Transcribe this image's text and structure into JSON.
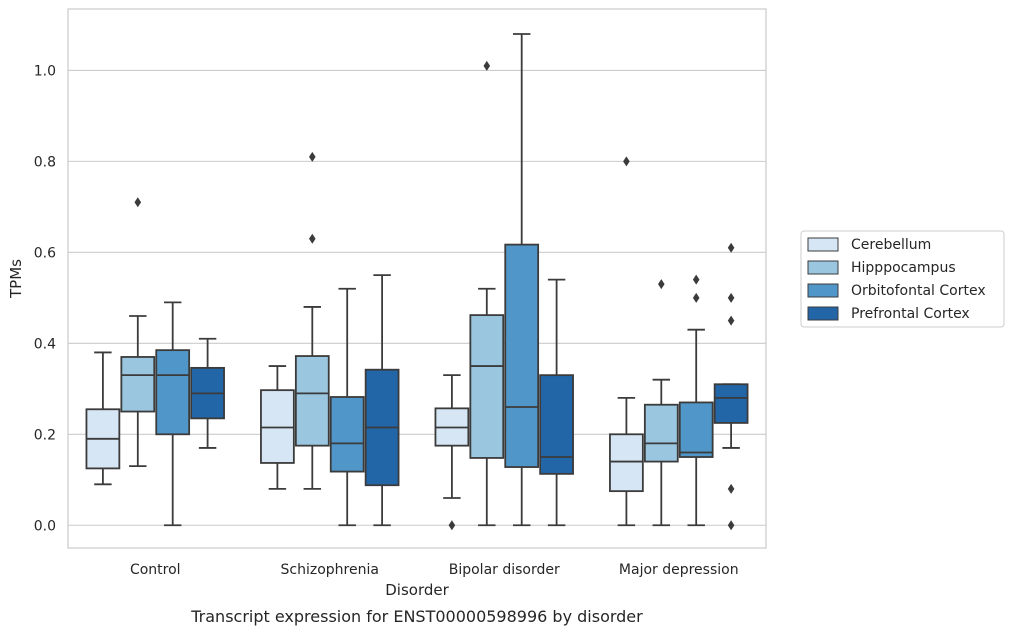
{
  "caption": "Transcript expression for ENST00000598996 by disorder",
  "chart_data": {
    "type": "box",
    "title": "",
    "xlabel": "Disorder",
    "ylabel": "TPMs",
    "categories": [
      "Control",
      "Schizophrenia",
      "Bipolar disorder",
      "Major depression"
    ],
    "ylim": [
      -0.05,
      1.135
    ],
    "yticks": [
      0.0,
      0.2,
      0.4,
      0.6,
      0.8,
      1.0
    ],
    "ytick_labels": [
      "0.0",
      "0.2",
      "0.4",
      "0.6",
      "0.8",
      "1.0"
    ],
    "grid": "horizontal",
    "legend_position": "right",
    "series": [
      {
        "name": "Cerebellum",
        "color": "#d6e6f4",
        "boxes": [
          {
            "whisker_low": 0.09,
            "q1": 0.125,
            "median": 0.19,
            "q3": 0.255,
            "whisker_high": 0.38,
            "outliers": []
          },
          {
            "whisker_low": 0.08,
            "q1": 0.137,
            "median": 0.215,
            "q3": 0.297,
            "whisker_high": 0.35,
            "outliers": []
          },
          {
            "whisker_low": 0.06,
            "q1": 0.175,
            "median": 0.215,
            "q3": 0.257,
            "whisker_high": 0.33,
            "outliers": [
              0.0
            ]
          },
          {
            "whisker_low": 0.0,
            "q1": 0.075,
            "median": 0.14,
            "q3": 0.2,
            "whisker_high": 0.28,
            "outliers": [
              0.8
            ]
          }
        ]
      },
      {
        "name": "Hipppocampus",
        "color": "#9ac6e0",
        "boxes": [
          {
            "whisker_low": 0.13,
            "q1": 0.25,
            "median": 0.33,
            "q3": 0.37,
            "whisker_high": 0.46,
            "outliers": [
              0.71
            ]
          },
          {
            "whisker_low": 0.08,
            "q1": 0.175,
            "median": 0.29,
            "q3": 0.372,
            "whisker_high": 0.48,
            "outliers": [
              0.81,
              0.63
            ]
          },
          {
            "whisker_low": 0.0,
            "q1": 0.148,
            "median": 0.35,
            "q3": 0.462,
            "whisker_high": 0.52,
            "outliers": [
              1.01
            ]
          },
          {
            "whisker_low": 0.0,
            "q1": 0.14,
            "median": 0.18,
            "q3": 0.265,
            "whisker_high": 0.32,
            "outliers": [
              0.53
            ]
          }
        ]
      },
      {
        "name": "Orbitofontal Cortex",
        "color": "#5096c8",
        "boxes": [
          {
            "whisker_low": 0.0,
            "q1": 0.2,
            "median": 0.33,
            "q3": 0.385,
            "whisker_high": 0.49,
            "outliers": []
          },
          {
            "whisker_low": 0.0,
            "q1": 0.118,
            "median": 0.18,
            "q3": 0.282,
            "whisker_high": 0.52,
            "outliers": []
          },
          {
            "whisker_low": 0.0,
            "q1": 0.128,
            "median": 0.26,
            "q3": 0.617,
            "whisker_high": 1.08,
            "outliers": []
          },
          {
            "whisker_low": 0.0,
            "q1": 0.15,
            "median": 0.16,
            "q3": 0.27,
            "whisker_high": 0.43,
            "outliers": [
              0.54,
              0.5
            ]
          }
        ]
      },
      {
        "name": "Prefrontal Cortex",
        "color": "#2366a8",
        "boxes": [
          {
            "whisker_low": 0.17,
            "q1": 0.235,
            "median": 0.29,
            "q3": 0.346,
            "whisker_high": 0.41,
            "outliers": []
          },
          {
            "whisker_low": 0.0,
            "q1": 0.088,
            "median": 0.215,
            "q3": 0.342,
            "whisker_high": 0.55,
            "outliers": []
          },
          {
            "whisker_low": 0.0,
            "q1": 0.113,
            "median": 0.15,
            "q3": 0.33,
            "whisker_high": 0.54,
            "outliers": []
          },
          {
            "whisker_low": 0.17,
            "q1": 0.225,
            "median": 0.28,
            "q3": 0.31,
            "whisker_high": 0.31,
            "outliers": [
              0.61,
              0.5,
              0.45,
              0.08,
              0.0
            ]
          }
        ]
      }
    ]
  }
}
